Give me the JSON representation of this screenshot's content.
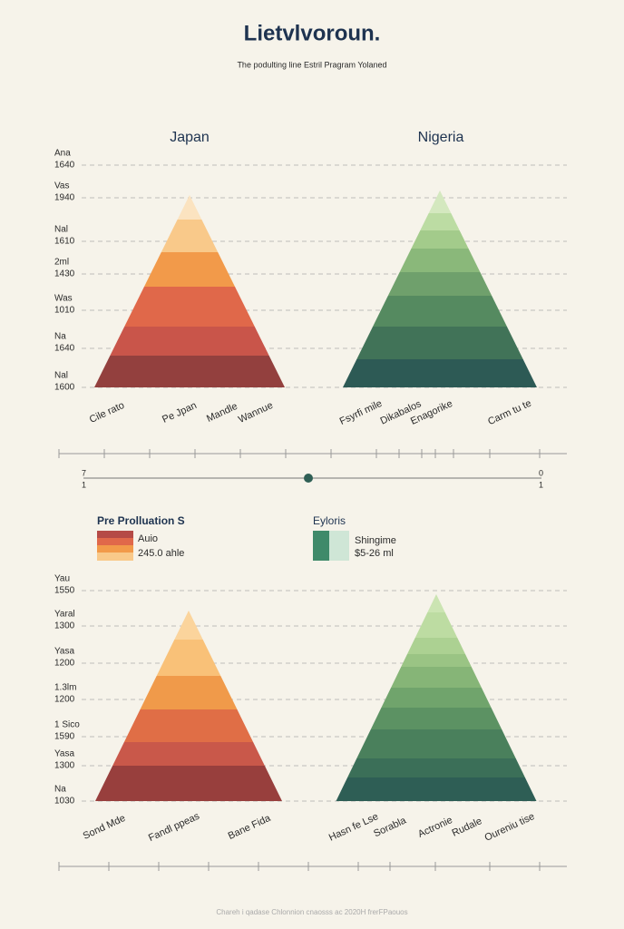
{
  "header": {
    "title": "Lietvlvoroun.",
    "subtitle": "The podulting line Estril Pragram Yolaned"
  },
  "top": {
    "left_title": "Japan",
    "right_title": "Nigeria",
    "y_labels": [
      [
        "Ana",
        "1640"
      ],
      [
        "Vas",
        "1940"
      ],
      [
        "Nal",
        "1610"
      ],
      [
        "2ml",
        "1430"
      ],
      [
        "Was",
        "1010"
      ],
      [
        "Na",
        "1640"
      ],
      [
        "Nal",
        "1600"
      ]
    ],
    "left_x_labels": [
      "Cile rato",
      "Pe Jpan",
      "Mandle",
      "Wannue"
    ],
    "right_x_labels": [
      "Fsyrfi mile",
      "Dikabalos",
      "Enagorike",
      "Carm tu te"
    ]
  },
  "slider": {
    "left": [
      "7",
      "1"
    ],
    "right": [
      "0",
      "1"
    ]
  },
  "legend_left": {
    "title": "Pre Prolluation S",
    "line1": "Auio",
    "line2": "245.0 ahle"
  },
  "legend_right": {
    "title": "Eyloris",
    "line1": "Shingime",
    "line2": "$5-26 ml"
  },
  "bottom": {
    "y_labels": [
      [
        "Yau",
        "1550"
      ],
      [
        "Yaral",
        "1300"
      ],
      [
        "Yasa",
        "1200"
      ],
      [
        "1.3lm",
        "1200"
      ],
      [
        "1 Sico",
        "1590"
      ],
      [
        "Yasa",
        "1300"
      ],
      [
        "Na",
        "1030"
      ]
    ],
    "left_x_labels": [
      "Sond Mde",
      "Fandl ppeas",
      "Bane Fida"
    ],
    "right_x_labels": [
      "Hasn fe Lse",
      "Sorabla",
      "Actronie",
      "Rudale",
      "Oureniu tise"
    ]
  },
  "footer": "Chareh i qadase Chlonnion cnaosss ac 2020H frerFPaouos"
}
